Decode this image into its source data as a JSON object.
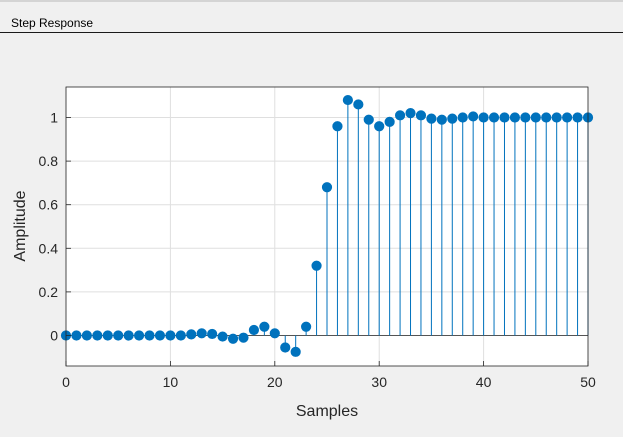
{
  "panel": {
    "title": "Step Response"
  },
  "chart_data": {
    "type": "stem",
    "xlabel": "Samples",
    "ylabel": "Amplitude",
    "xlim": [
      0,
      50
    ],
    "ylim": [
      -0.14,
      1.14
    ],
    "xticks": [
      0,
      10,
      20,
      30,
      40,
      50
    ],
    "xtick_labels": [
      "0",
      "10",
      "20",
      "30",
      "40",
      "50"
    ],
    "yticks": [
      0,
      0.2,
      0.4,
      0.6,
      0.8,
      1
    ],
    "ytick_labels": [
      "0",
      "0.2",
      "0.4",
      "0.6",
      "0.8",
      "1"
    ],
    "grid": true,
    "baseline": 0,
    "color": "#0072bd",
    "x": [
      0,
      1,
      2,
      3,
      4,
      5,
      6,
      7,
      8,
      9,
      10,
      11,
      12,
      13,
      14,
      15,
      16,
      17,
      18,
      19,
      20,
      21,
      22,
      23,
      24,
      25,
      26,
      27,
      28,
      29,
      30,
      31,
      32,
      33,
      34,
      35,
      36,
      37,
      38,
      39,
      40,
      41,
      42,
      43,
      44,
      45,
      46,
      47,
      48,
      49,
      50
    ],
    "y": [
      0.0,
      0.0,
      0.0,
      0.0,
      0.0,
      0.0,
      0.0,
      0.0,
      0.0,
      0.0,
      0.0,
      0.0,
      0.005,
      0.01,
      0.007,
      -0.005,
      -0.015,
      -0.01,
      0.025,
      0.04,
      0.01,
      -0.055,
      -0.075,
      0.04,
      0.32,
      0.68,
      0.96,
      1.08,
      1.06,
      0.99,
      0.96,
      0.98,
      1.01,
      1.02,
      1.01,
      0.995,
      0.99,
      0.995,
      1.0,
      1.005,
      1.0,
      1.0,
      1.0,
      1.0,
      1.0,
      1.0,
      1.0,
      1.0,
      1.0,
      1.0,
      1.0
    ]
  }
}
